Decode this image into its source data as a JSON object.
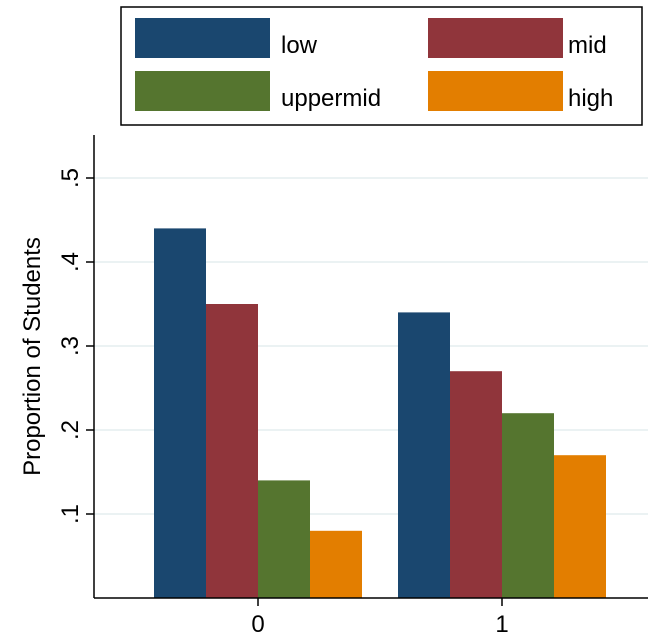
{
  "chart_data": {
    "type": "bar",
    "title": "",
    "xlabel": "",
    "ylabel": "Proportion of Students",
    "categories": [
      "0",
      "1"
    ],
    "series": [
      {
        "name": "low",
        "values": [
          0.44,
          0.34
        ],
        "color": "#1a476f"
      },
      {
        "name": "mid",
        "values": [
          0.35,
          0.27
        ],
        "color": "#90353b"
      },
      {
        "name": "uppermid",
        "values": [
          0.14,
          0.22
        ],
        "color": "#55752f"
      },
      {
        "name": "high",
        "values": [
          0.08,
          0.17
        ],
        "color": "#e37e00"
      }
    ],
    "ylim": [
      0,
      0.5
    ],
    "yticks": [
      0.1,
      0.2,
      0.3,
      0.4,
      0.5
    ],
    "ytick_labels": [
      ".1",
      ".2",
      ".3",
      ".4",
      ".5"
    ],
    "grid": true,
    "legend_position": "top"
  }
}
